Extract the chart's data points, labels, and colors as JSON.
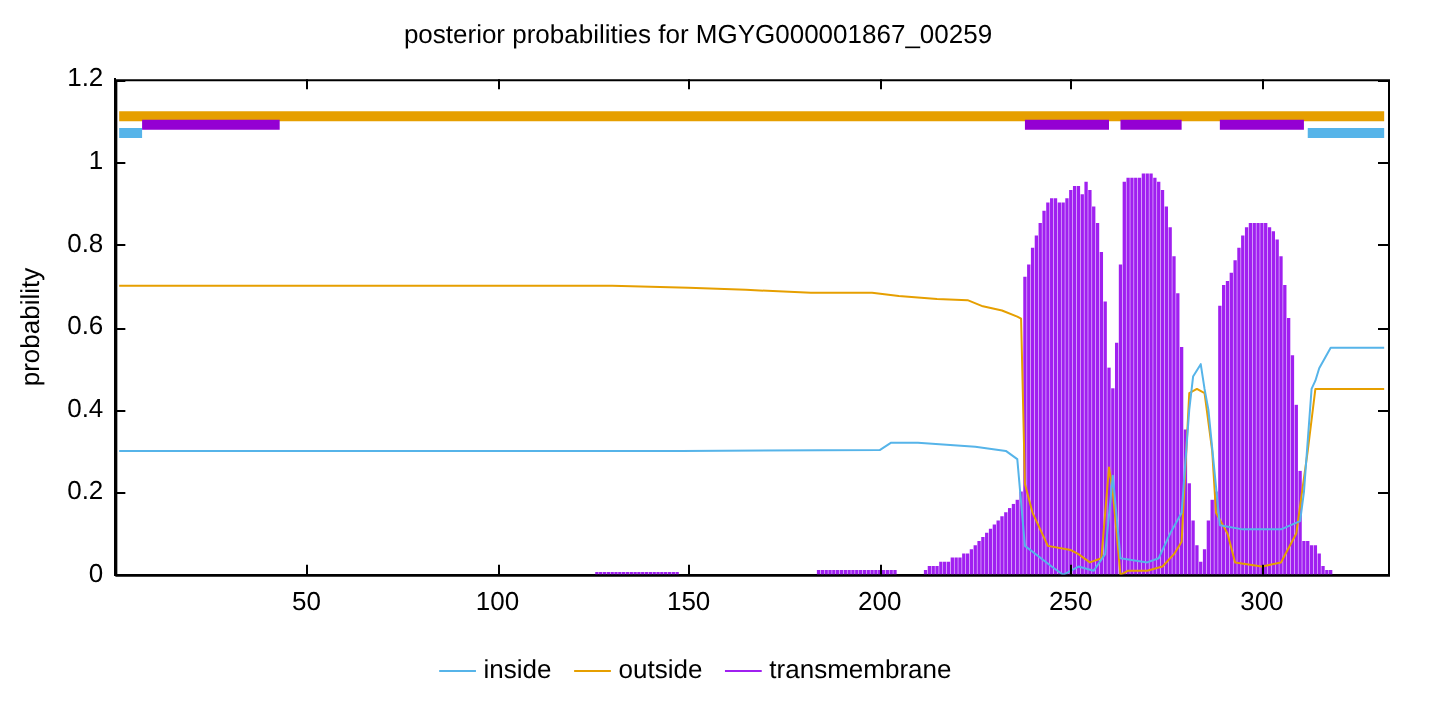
{
  "chart_data": {
    "type": "line",
    "title": "posterior probabilities for MGYG000001867_00259",
    "ylabel": "probability",
    "xlim": [
      0,
      333
    ],
    "ylim": [
      0,
      1.2
    ],
    "xticks": [
      50,
      100,
      150,
      200,
      250,
      300
    ],
    "yticks": [
      0,
      0.2,
      0.4,
      0.6,
      0.8,
      1,
      1.2
    ],
    "grid": false,
    "legend": "bottom",
    "series": [
      {
        "type": "bar",
        "name": "transmembrane",
        "color": "#a020f0",
        "x": [
          126,
          127,
          128,
          129,
          130,
          131,
          132,
          133,
          134,
          135,
          136,
          137,
          138,
          139,
          140,
          141,
          142,
          143,
          144,
          145,
          146,
          147,
          184,
          185,
          186,
          187,
          188,
          189,
          190,
          191,
          192,
          193,
          194,
          195,
          196,
          197,
          198,
          199,
          200,
          201,
          202,
          203,
          204,
          212,
          213,
          214,
          215,
          216,
          217,
          218,
          219,
          220,
          221,
          222,
          223,
          224,
          225,
          226,
          227,
          228,
          229,
          230,
          231,
          232,
          233,
          234,
          235,
          236,
          237,
          238,
          239,
          240,
          241,
          242,
          243,
          244,
          245,
          246,
          247,
          248,
          249,
          250,
          251,
          252,
          253,
          254,
          255,
          256,
          257,
          258,
          259,
          260,
          261,
          262,
          263,
          264,
          265,
          266,
          267,
          268,
          269,
          270,
          271,
          272,
          273,
          274,
          275,
          276,
          277,
          278,
          279,
          280,
          281,
          282,
          283,
          284,
          285,
          286,
          287,
          288,
          289,
          290,
          291,
          292,
          293,
          294,
          295,
          296,
          297,
          298,
          299,
          300,
          301,
          302,
          303,
          304,
          305,
          306,
          307,
          308,
          309,
          310,
          311,
          312,
          313,
          314,
          315,
          316,
          317,
          318
        ],
        "values": [
          0.005,
          0.005,
          0.005,
          0.005,
          0.005,
          0.005,
          0.005,
          0.005,
          0.005,
          0.005,
          0.005,
          0.005,
          0.005,
          0.005,
          0.005,
          0.005,
          0.005,
          0.005,
          0.005,
          0.005,
          0.005,
          0.005,
          0.01,
          0.01,
          0.01,
          0.01,
          0.01,
          0.01,
          0.01,
          0.01,
          0.01,
          0.01,
          0.01,
          0.01,
          0.01,
          0.01,
          0.01,
          0.01,
          0.01,
          0.01,
          0.01,
          0.01,
          0.01,
          0.01,
          0.02,
          0.02,
          0.02,
          0.03,
          0.03,
          0.03,
          0.04,
          0.04,
          0.04,
          0.05,
          0.05,
          0.06,
          0.07,
          0.08,
          0.09,
          0.1,
          0.11,
          0.12,
          0.13,
          0.14,
          0.15,
          0.16,
          0.17,
          0.18,
          0.2,
          0.72,
          0.75,
          0.79,
          0.82,
          0.85,
          0.88,
          0.9,
          0.91,
          0.91,
          0.9,
          0.9,
          0.91,
          0.93,
          0.94,
          0.94,
          0.92,
          0.95,
          0.93,
          0.89,
          0.85,
          0.78,
          0.66,
          0.5,
          0.45,
          0.56,
          0.75,
          0.95,
          0.96,
          0.96,
          0.96,
          0.96,
          0.97,
          0.97,
          0.97,
          0.96,
          0.95,
          0.93,
          0.89,
          0.84,
          0.77,
          0.68,
          0.55,
          0.35,
          0.22,
          0.13,
          0.07,
          0.03,
          0.06,
          0.13,
          0.18,
          0.2,
          0.65,
          0.7,
          0.71,
          0.73,
          0.76,
          0.79,
          0.82,
          0.84,
          0.85,
          0.85,
          0.85,
          0.85,
          0.85,
          0.84,
          0.83,
          0.81,
          0.77,
          0.7,
          0.62,
          0.53,
          0.41,
          0.25,
          0.08,
          0.08,
          0.07,
          0.07,
          0.05,
          0.02,
          0.01,
          0.01
        ]
      },
      {
        "type": "line",
        "name": "inside",
        "color": "#56b4e9",
        "x": [
          1,
          148,
          200,
          203,
          210,
          225,
          233,
          236,
          238,
          245,
          248,
          252,
          256,
          259,
          261,
          263,
          270,
          273,
          276,
          279,
          281,
          282,
          284,
          285,
          286,
          289,
          295,
          305,
          310,
          311,
          313,
          314,
          315,
          318,
          332
        ],
        "values": [
          0.3,
          0.3,
          0.302,
          0.32,
          0.32,
          0.31,
          0.3,
          0.28,
          0.07,
          0.02,
          0,
          0.02,
          0.01,
          0.05,
          0.24,
          0.04,
          0.03,
          0.04,
          0.1,
          0.15,
          0.4,
          0.48,
          0.51,
          0.45,
          0.4,
          0.12,
          0.11,
          0.11,
          0.13,
          0.2,
          0.45,
          0.47,
          0.5,
          0.55,
          0.55
        ]
      },
      {
        "type": "line",
        "name": "outside",
        "color": "#e69f00",
        "x": [
          1,
          130,
          150,
          165,
          182,
          198,
          205,
          215,
          223,
          227,
          232,
          236,
          237,
          238,
          240,
          244,
          250,
          252,
          255,
          258,
          260,
          261,
          263,
          265,
          270,
          274,
          277,
          279,
          281,
          283,
          285,
          287,
          288,
          291,
          293,
          300,
          305,
          309,
          312,
          314,
          332
        ],
        "values": [
          0.7,
          0.7,
          0.695,
          0.69,
          0.683,
          0.683,
          0.675,
          0.668,
          0.665,
          0.65,
          0.64,
          0.625,
          0.62,
          0.22,
          0.15,
          0.07,
          0.06,
          0.05,
          0.03,
          0.04,
          0.26,
          0.2,
          0,
          0.01,
          0.01,
          0.02,
          0.05,
          0.08,
          0.44,
          0.45,
          0.44,
          0.3,
          0.15,
          0.1,
          0.03,
          0.02,
          0.03,
          0.1,
          0.3,
          0.45,
          0.45
        ]
      },
      {
        "type": "line",
        "color": "#e69f00",
        "x": [
          1,
          332
        ],
        "values": [
          1.11,
          1.11
        ]
      },
      {
        "color": "#56b4e9",
        "x": [
          1,
          7,
          8,
          312,
          332
        ],
        "values": [
          1.07,
          1.07,
          null,
          1.07,
          1.07
        ]
      },
      {
        "color": "#9400d3",
        "x": [
          7,
          43,
          44,
          238,
          260,
          261,
          263,
          279,
          280,
          289,
          311
        ],
        "values": [
          1.09,
          1.09,
          null,
          1.09,
          1.09,
          null,
          1.09,
          1.09,
          null,
          1.09,
          1.09
        ]
      }
    ]
  }
}
